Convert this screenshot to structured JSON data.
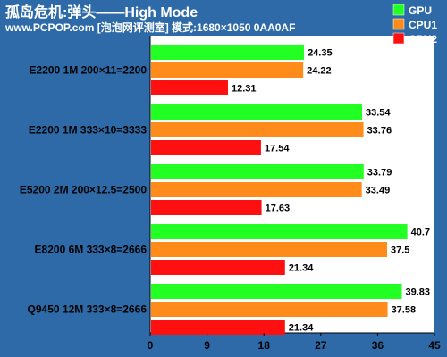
{
  "header": {
    "title": "孤岛危机:弹头——High Mode",
    "subtitle": "www.PCPOP.com [泡泡网评测室] 模式:1680×1050 0AA0AF"
  },
  "colors": {
    "background": "#2d6aa7",
    "plot_area": "#ffffff",
    "GPU": "#22ff22",
    "CPU1": "#ff8c1a",
    "CPU2": "#ff1010"
  },
  "chart_data": {
    "type": "bar",
    "orientation": "horizontal",
    "title": "孤岛危机:弹头——High Mode",
    "subtitle": "www.PCPOP.com [泡泡网评测室] 模式:1680×1050 0AA0AF",
    "categories": [
      "E2200 1M 200×11=2200",
      "E2200 1M 333×10=3333",
      "E5200 2M 200×12.5=2500",
      "E8200 6M 333×8=2666",
      "Q9450 12M 333×8=2666"
    ],
    "series": [
      {
        "name": "GPU",
        "values": [
          24.35,
          33.54,
          33.79,
          40.7,
          39.83
        ]
      },
      {
        "name": "CPU1",
        "values": [
          24.22,
          33.76,
          33.49,
          37.5,
          37.58
        ]
      },
      {
        "name": "CPU2",
        "values": [
          12.31,
          17.54,
          17.63,
          21.34,
          21.34
        ]
      }
    ],
    "value_labels": [
      [
        "24.35",
        "33.54",
        "33.79",
        "40.7",
        "39.83"
      ],
      [
        "24.22",
        "33.76",
        "33.49",
        "37.5",
        "37.58"
      ],
      [
        "12.31",
        "17.54",
        "17.63",
        "21.34",
        "21.34"
      ]
    ],
    "xlim": [
      0,
      45
    ],
    "ticks": [
      0,
      9,
      18,
      27,
      36,
      45
    ],
    "tick_labels": [
      "0",
      "9",
      "18",
      "27",
      "36",
      "45"
    ],
    "legend_position": "top-right",
    "grid": false
  }
}
